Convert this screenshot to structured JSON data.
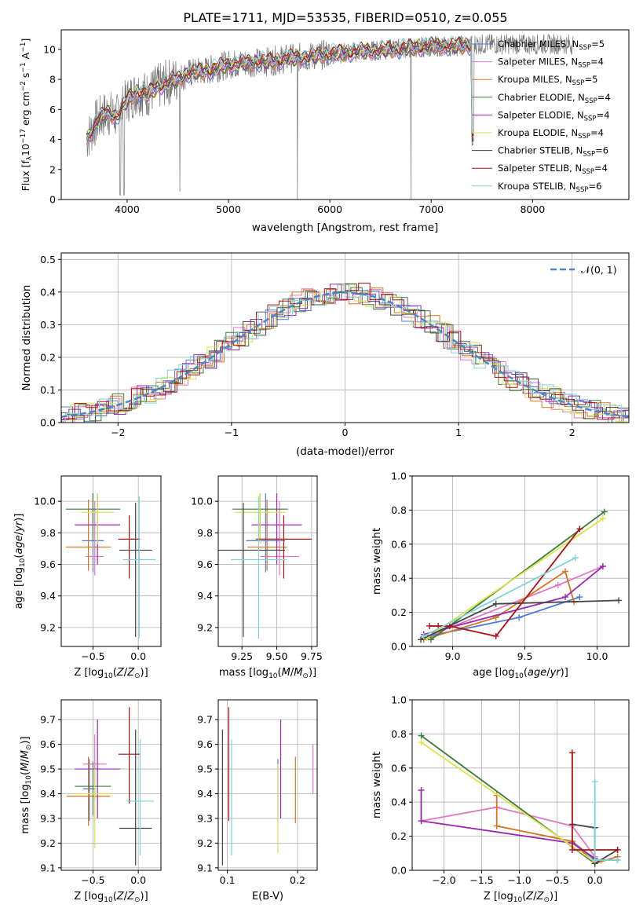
{
  "figure_title": "PLATE=1711, MJD=53535, FIBERID=0510, z=0.055",
  "colors": [
    "#4c78dc",
    "#e377c2",
    "#d6731e",
    "#3a7d3a",
    "#9b27b0",
    "#dde34a",
    "#444444",
    "#b01010",
    "#7fd4d8"
  ],
  "chart_data": [
    {
      "id": "spectrum",
      "type": "line",
      "xlabel": "wavelength [Angstrom, rest frame]",
      "ylabel": "Flux [f_λ10^-17 erg cm^-2 s^-1 A^-1]",
      "xlim": [
        3350,
        8950
      ],
      "ylim": [
        0,
        11.3
      ],
      "xticks": [
        4000,
        5000,
        6000,
        7000,
        8000
      ],
      "yticks": [
        0,
        2,
        4,
        6,
        8,
        10
      ],
      "legend_position": "top-right",
      "legend": [
        {
          "main": "Chabrier MILES, N",
          "sub": "SSP",
          "tail": "=5"
        },
        {
          "main": "Salpeter MILES, N",
          "sub": "SSP",
          "tail": "=4"
        },
        {
          "main": "Kroupa MILES, N",
          "sub": "SSP",
          "tail": "=5"
        },
        {
          "main": "Chabrier ELODIE, N",
          "sub": "SSP",
          "tail": "=4"
        },
        {
          "main": "Salpeter ELODIE, N",
          "sub": "SSP",
          "tail": "=4"
        },
        {
          "main": "Kroupa ELODIE, N",
          "sub": "SSP",
          "tail": "=4"
        },
        {
          "main": "Chabrier STELIB, N",
          "sub": "SSP",
          "tail": "=6"
        },
        {
          "main": "Salpeter STELIB, N",
          "sub": "SSP",
          "tail": "=4"
        },
        {
          "main": "Kroupa STELIB, N",
          "sub": "SSP",
          "tail": "=6"
        }
      ],
      "series": [
        {
          "x": [
            3600,
            3700,
            3800,
            3900,
            4000,
            4100,
            4200,
            4300,
            4400,
            4500,
            4600,
            4800,
            5000,
            5200,
            5400,
            5600,
            5800,
            6000,
            6200,
            6400,
            6600,
            6800,
            7000,
            7200,
            7400
          ],
          "y": [
            4.0,
            5.2,
            5.8,
            5.5,
            6.6,
            7.2,
            7.0,
            7.5,
            7.8,
            8.0,
            8.4,
            8.6,
            9.0,
            9.1,
            9.2,
            9.4,
            9.5,
            9.7,
            9.8,
            9.9,
            10.0,
            10.1,
            10.2,
            10.2,
            10.3
          ]
        }
      ]
    },
    {
      "id": "residuals",
      "type": "line",
      "xlabel": "(data-model)/error",
      "ylabel": "Normed distribution",
      "xlim": [
        -2.5,
        2.5
      ],
      "ylim": [
        0,
        0.52
      ],
      "xticks": [
        -2,
        -1,
        0,
        1,
        2
      ],
      "yticks": [
        0.0,
        0.1,
        0.2,
        0.3,
        0.4,
        0.5
      ],
      "legend": "𝒩(0, 1)",
      "legend_position": "top-right",
      "grid": true
    },
    {
      "id": "age_vs_Z",
      "type": "scatter",
      "xlabel": "Z [log10(Z/Z⊙)]",
      "ylabel": "age [log10(age/yr)]",
      "xlim": [
        -0.85,
        0.25
      ],
      "ylim": [
        9.08,
        10.16
      ],
      "xticks": [
        -0.5,
        0.0
      ],
      "yticks": [
        9.2,
        9.4,
        9.6,
        9.8,
        10.0
      ],
      "grid": true,
      "points": [
        {
          "x": -0.5,
          "y": 9.75,
          "xerr": 0.12,
          "yerr": [
            0.2,
            0.3
          ]
        },
        {
          "x": -0.48,
          "y": 9.65,
          "xerr": 0.1,
          "yerr": [
            0.12,
            0.35
          ]
        },
        {
          "x": -0.55,
          "y": 9.71,
          "xerr": 0.25,
          "yerr": [
            0.15,
            0.3
          ]
        },
        {
          "x": -0.5,
          "y": 9.95,
          "xerr": 0.3,
          "yerr": [
            0.2,
            0.1
          ]
        },
        {
          "x": -0.45,
          "y": 9.85,
          "xerr": 0.25,
          "yerr": [
            0.25,
            0.2
          ]
        },
        {
          "x": -0.45,
          "y": 9.93,
          "xerr": 0.18,
          "yerr": [
            0.2,
            0.12
          ]
        },
        {
          "x": -0.03,
          "y": 9.69,
          "xerr": 0.18,
          "yerr": [
            0.55,
            0.3
          ]
        },
        {
          "x": -0.1,
          "y": 9.76,
          "xerr": 0.12,
          "yerr": [
            0.25,
            0.15
          ]
        },
        {
          "x": 0.01,
          "y": 9.63,
          "xerr": 0.18,
          "yerr": [
            0.5,
            0.4
          ]
        }
      ]
    },
    {
      "id": "age_vs_mass",
      "type": "scatter",
      "xlabel": "mass [log10(M/M⊙)]",
      "ylabel": "",
      "xlim": [
        9.08,
        9.79
      ],
      "ylim": [
        9.08,
        10.16
      ],
      "xticks": [
        9.25,
        9.5,
        9.75
      ],
      "yticks": [
        9.2,
        9.4,
        9.6,
        9.8,
        10.0
      ],
      "grid": true,
      "points": [
        {
          "x": 9.42,
          "y": 9.75,
          "xerr": 0.14,
          "yerr": [
            0.2,
            0.3
          ]
        },
        {
          "x": 9.52,
          "y": 9.65,
          "xerr": 0.14,
          "yerr": [
            0.12,
            0.35
          ]
        },
        {
          "x": 9.43,
          "y": 9.71,
          "xerr": 0.14,
          "yerr": [
            0.15,
            0.3
          ]
        },
        {
          "x": 9.38,
          "y": 9.95,
          "xerr": 0.2,
          "yerr": [
            0.2,
            0.1
          ]
        },
        {
          "x": 9.5,
          "y": 9.85,
          "xerr": 0.18,
          "yerr": [
            0.25,
            0.2
          ]
        },
        {
          "x": 9.38,
          "y": 9.93,
          "xerr": 0.18,
          "yerr": [
            0.2,
            0.12
          ]
        },
        {
          "x": 9.26,
          "y": 9.69,
          "xerr": 0.3,
          "yerr": [
            0.55,
            0.3
          ]
        },
        {
          "x": 9.55,
          "y": 9.76,
          "xerr": 0.2,
          "yerr": [
            0.25,
            0.15
          ]
        },
        {
          "x": 9.37,
          "y": 9.63,
          "xerr": 0.2,
          "yerr": [
            0.5,
            0.4
          ]
        }
      ]
    },
    {
      "id": "weight_vs_age",
      "type": "line",
      "xlabel": "age [log10(age/yr)]",
      "ylabel": "mass weight",
      "xlim": [
        8.72,
        10.22
      ],
      "ylim": [
        0,
        1.0
      ],
      "xticks": [
        9.0,
        9.5,
        10.0
      ],
      "yticks": [
        0.0,
        0.2,
        0.4,
        0.6,
        0.8,
        1.0
      ],
      "grid": true,
      "series": [
        {
          "x": [
            8.83,
            9.46,
            9.88
          ],
          "y": [
            0.06,
            0.17,
            0.29
          ]
        },
        {
          "x": [
            8.8,
            9.73,
            10.04
          ],
          "y": [
            0.05,
            0.36,
            0.47
          ]
        },
        {
          "x": [
            8.8,
            9.3,
            9.78,
            9.84
          ],
          "y": [
            0.04,
            0.17,
            0.44,
            0.26
          ]
        },
        {
          "x": [
            8.85,
            10.05
          ],
          "y": [
            0.04,
            0.79
          ]
        },
        {
          "x": [
            8.8,
            9.78,
            10.04
          ],
          "y": [
            0.07,
            0.29,
            0.47
          ]
        },
        {
          "x": [
            8.82,
            10.04
          ],
          "y": [
            0.05,
            0.75
          ]
        },
        {
          "x": [
            8.78,
            9.3,
            10.15
          ],
          "y": [
            0.04,
            0.25,
            0.27
          ]
        },
        {
          "x": [
            8.84,
            8.9,
            8.98,
            9.3,
            9.88
          ],
          "y": [
            0.12,
            0.12,
            0.12,
            0.06,
            0.69
          ]
        },
        {
          "x": [
            8.8,
            9.85
          ],
          "y": [
            0.06,
            0.52
          ]
        }
      ]
    },
    {
      "id": "mass_vs_Z",
      "type": "scatter",
      "xlabel": "Z [log10(Z/Z⊙)]",
      "ylabel": "mass [log10(M/M⊙)]",
      "xlim": [
        -0.85,
        0.25
      ],
      "ylim": [
        9.09,
        9.78
      ],
      "xticks": [
        -0.5,
        0.0
      ],
      "yticks": [
        9.1,
        9.2,
        9.3,
        9.4,
        9.5,
        9.6,
        9.7
      ],
      "grid": true,
      "points": [
        {
          "x": -0.54,
          "y": 9.42,
          "xerr": 0.07,
          "yerr": [
            0.13,
            0.12
          ]
        },
        {
          "x": -0.48,
          "y": 9.52,
          "xerr": 0.13,
          "yerr": [
            0.15,
            0.12
          ]
        },
        {
          "x": -0.55,
          "y": 9.39,
          "xerr": 0.24,
          "yerr": [
            0.12,
            0.16
          ]
        },
        {
          "x": -0.5,
          "y": 9.43,
          "xerr": 0.2,
          "yerr": [
            0.12,
            0.1
          ]
        },
        {
          "x": -0.45,
          "y": 9.5,
          "xerr": 0.25,
          "yerr": [
            0.2,
            0.2
          ]
        },
        {
          "x": -0.48,
          "y": 9.4,
          "xerr": 0.2,
          "yerr": [
            0.22,
            0.1
          ]
        },
        {
          "x": -0.03,
          "y": 9.26,
          "xerr": 0.18,
          "yerr": [
            0.15,
            0.4
          ]
        },
        {
          "x": -0.1,
          "y": 9.56,
          "xerr": 0.12,
          "yerr": [
            0.2,
            0.19
          ]
        },
        {
          "x": 0.02,
          "y": 9.37,
          "xerr": 0.15,
          "yerr": [
            0.22,
            0.25
          ]
        }
      ]
    },
    {
      "id": "mass_vs_ebv",
      "type": "scatter",
      "xlabel": "E(B-V)",
      "ylabel": "",
      "xlim": [
        0.087,
        0.228
      ],
      "ylim": [
        9.09,
        9.78
      ],
      "xticks": [
        0.1,
        0.2
      ],
      "yticks": [
        9.1,
        9.2,
        9.3,
        9.4,
        9.5,
        9.6,
        9.7
      ],
      "grid": true,
      "points": [
        {
          "x": 0.172,
          "y": 9.42,
          "yerr": [
            0.13,
            0.12
          ]
        },
        {
          "x": 0.222,
          "y": 9.52,
          "yerr": [
            0.12,
            0.08
          ]
        },
        {
          "x": 0.197,
          "y": 9.42,
          "yerr": [
            0.14,
            0.13
          ]
        },
        {
          "x": 0.102,
          "y": 9.43,
          "yerr": [
            0.12,
            0.1
          ]
        },
        {
          "x": 0.176,
          "y": 9.5,
          "yerr": [
            0.2,
            0.2
          ]
        },
        {
          "x": 0.172,
          "y": 9.36,
          "yerr": [
            0.2,
            0.16
          ]
        },
        {
          "x": 0.093,
          "y": 9.26,
          "yerr": [
            0.15,
            0.4
          ]
        },
        {
          "x": 0.102,
          "y": 9.56,
          "yerr": [
            0.27,
            0.19
          ]
        },
        {
          "x": 0.106,
          "y": 9.37,
          "yerr": [
            0.22,
            0.25
          ]
        }
      ]
    },
    {
      "id": "weight_vs_Z",
      "type": "line",
      "xlabel": "Z [log10(Z/Z⊙)]",
      "ylabel": "mass weight",
      "xlim": [
        -2.42,
        0.45
      ],
      "ylim": [
        0,
        1.0
      ],
      "xticks": [
        -2.0,
        -1.5,
        -1.0,
        -0.5,
        0.0
      ],
      "yticks": [
        0.0,
        0.2,
        0.4,
        0.6,
        0.8,
        1.0
      ],
      "grid": true,
      "series": [
        {
          "x": [
            -0.3,
            0.0,
            0.3
          ],
          "y": [
            0.17,
            0.06,
            0.06
          ]
        },
        {
          "x": [
            -2.3,
            -1.3,
            -0.3,
            0.0
          ],
          "y": [
            0.29,
            0.37,
            0.26,
            0.08
          ]
        },
        {
          "x": [
            -1.3,
            -1.3,
            -0.3,
            0.0,
            0.3
          ],
          "y": [
            0.44,
            0.26,
            0.17,
            0.04,
            0.08
          ]
        },
        {
          "x": [
            -2.3,
            0.0
          ],
          "y": [
            0.79,
            0.04
          ]
        },
        {
          "x": [
            -2.3,
            -2.3,
            -0.3,
            0.0
          ],
          "y": [
            0.47,
            0.29,
            0.16,
            0.07
          ]
        },
        {
          "x": [
            -2.3,
            0.0
          ],
          "y": [
            0.75,
            0.05
          ]
        },
        {
          "x": [
            -0.3,
            0.0,
            0.0,
            0.3
          ],
          "y": [
            0.27,
            0.25,
            0.04,
            0.12
          ]
        },
        {
          "x": [
            -0.3,
            -0.3,
            0.0,
            0.3
          ],
          "y": [
            0.69,
            0.12,
            0.12,
            0.12
          ]
        },
        {
          "x": [
            0.0,
            0.0,
            0.3
          ],
          "y": [
            0.52,
            0.06,
            0.06
          ]
        }
      ]
    }
  ]
}
